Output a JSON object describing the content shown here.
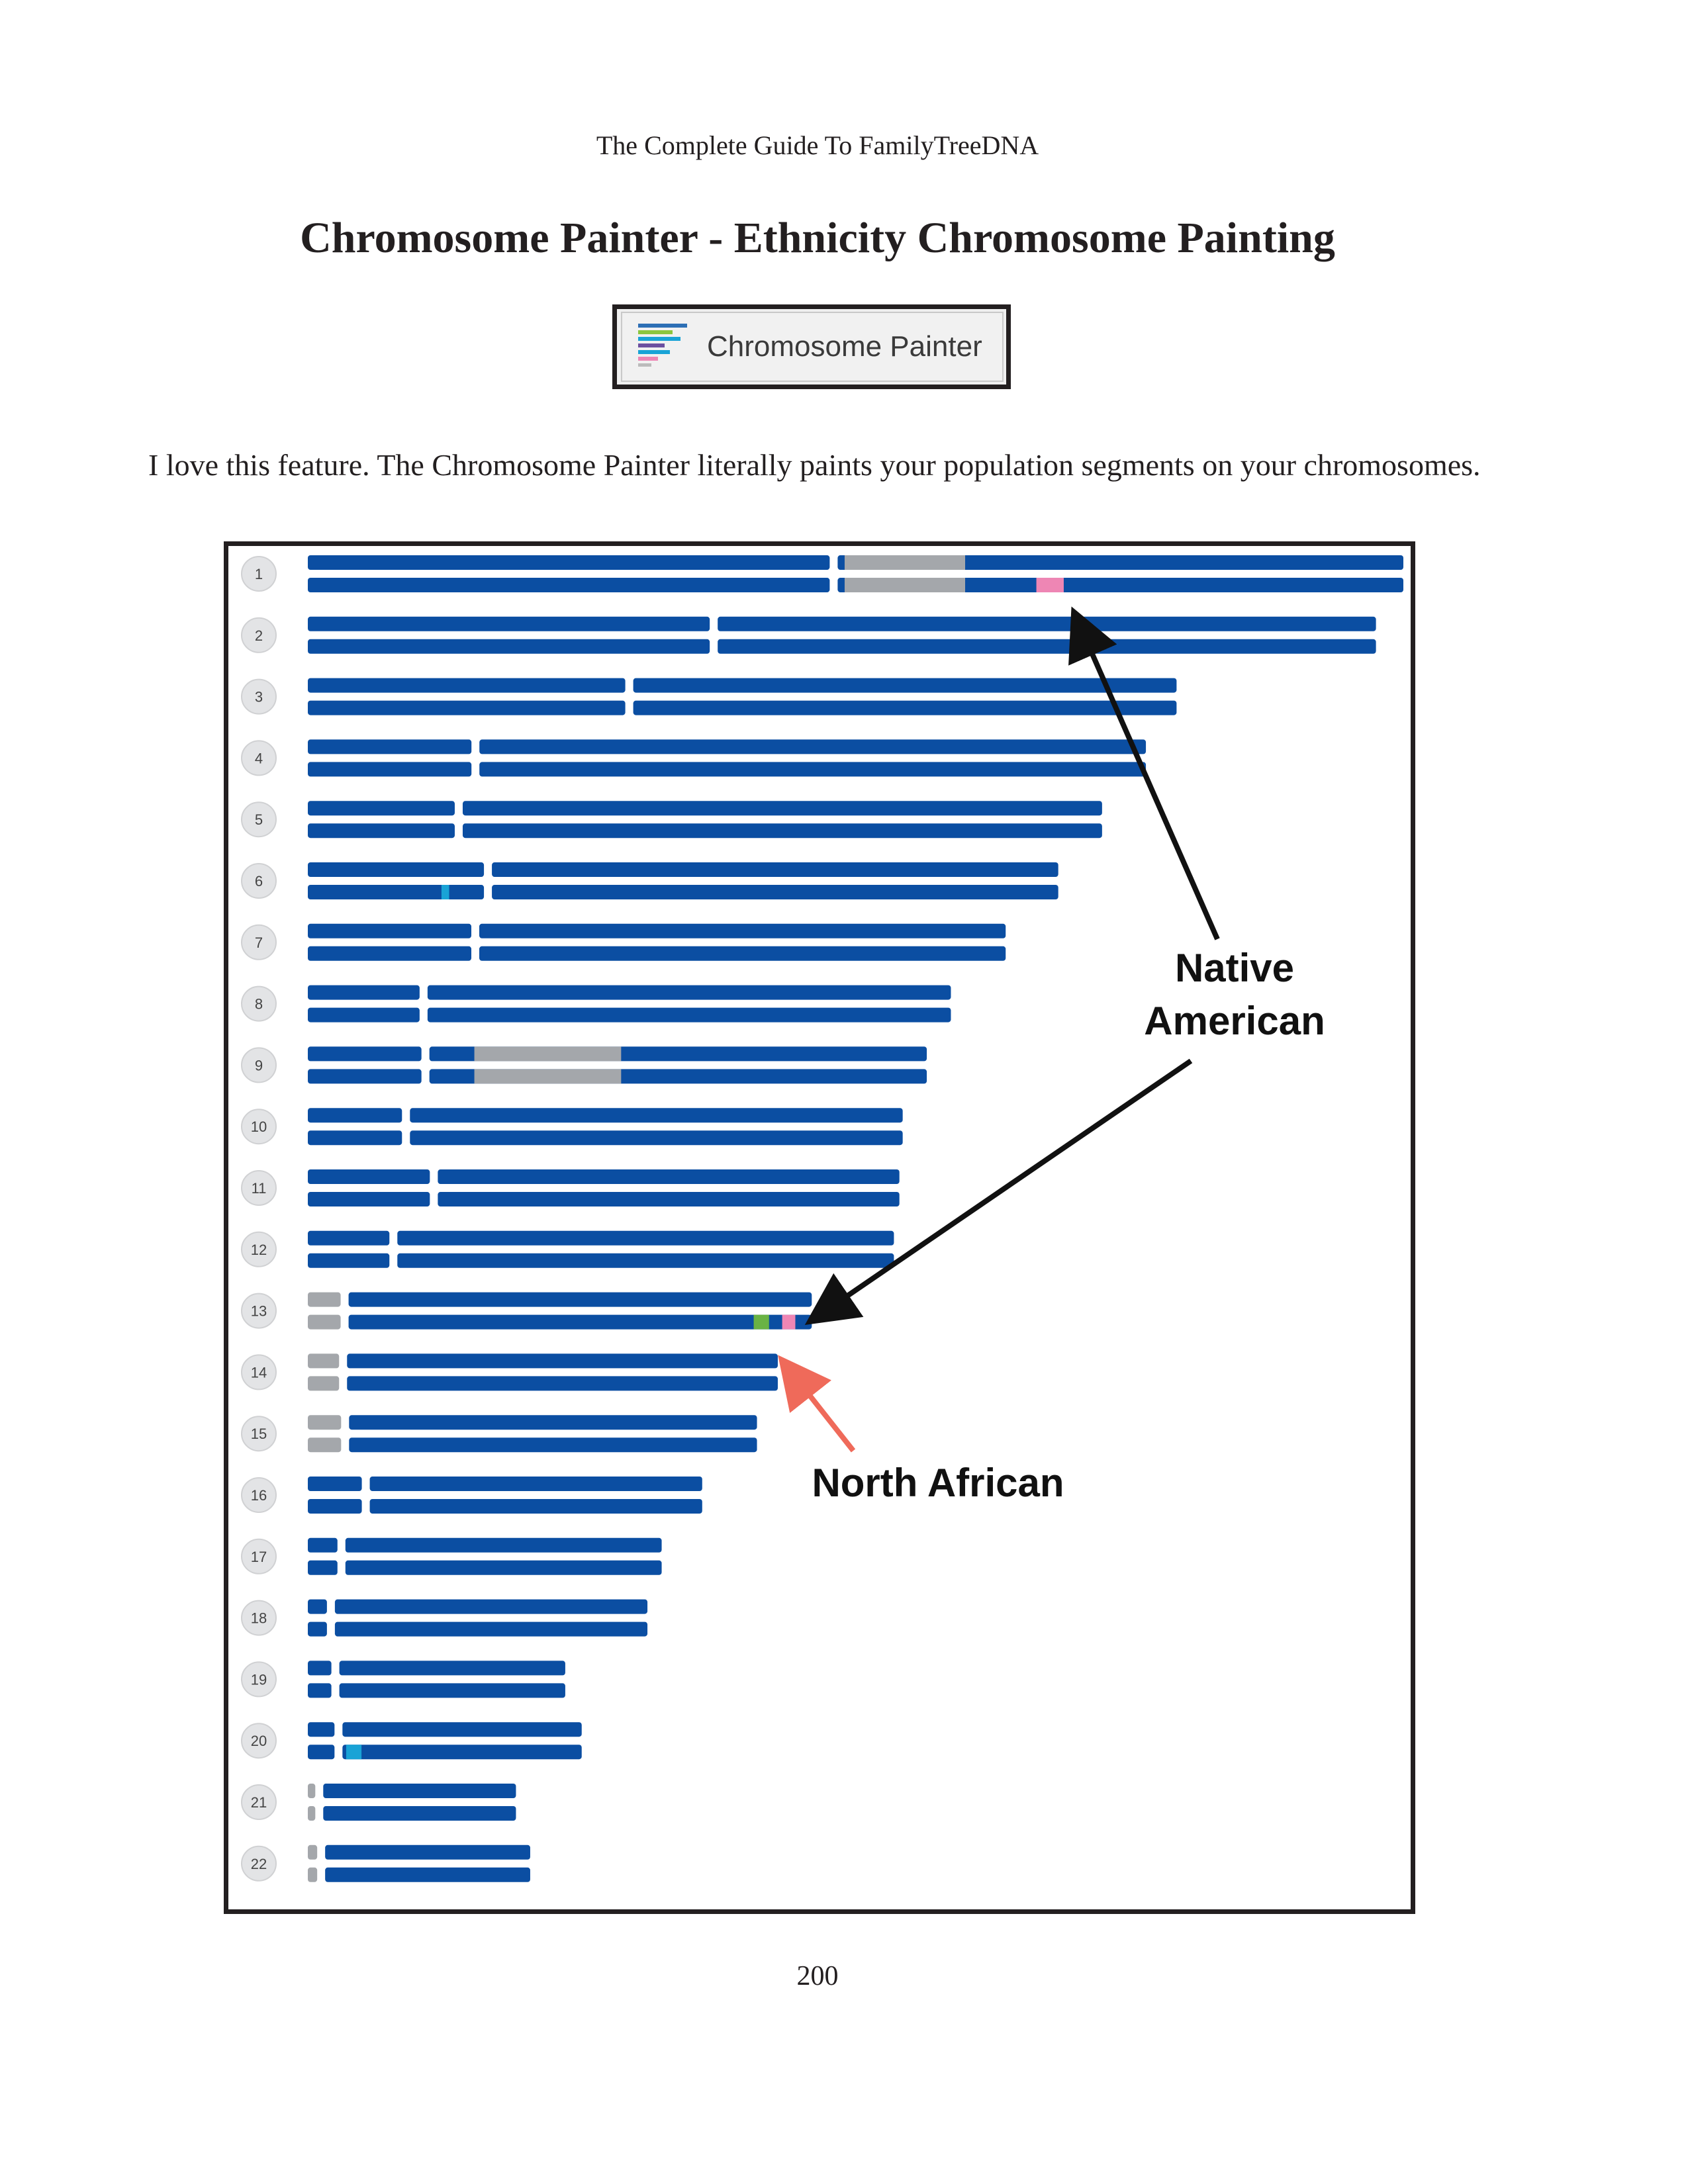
{
  "header": {
    "running_title": "The Complete Guide To FamilyTreeDNA"
  },
  "title": "Chromosome Painter - Ethnicity Chromosome Painting",
  "button": {
    "label": "Chromosome Painter",
    "icon": "chromosome-painter-icon"
  },
  "intro_text": "I love this feature. The Chromosome Painter literally paints your population segments on your chromosomes.",
  "colors": {
    "primary_population": "#0b4ea2",
    "unassigned": "#a4a7ab",
    "native_american": "#ee86b4",
    "north_african": "#6ab344",
    "other_cyan": "#19a3d6",
    "annotation_arrow_black": "#111111",
    "annotation_arrow_red": "#ef6a5a"
  },
  "chromosomes": [
    {
      "label": "1",
      "length": 1.0,
      "centromere": 0.48,
      "grey": [
        0.49,
        0.6
      ],
      "marks": [
        {
          "strand": 2,
          "start": 0.665,
          "end": 0.69,
          "population": "native_american"
        }
      ]
    },
    {
      "label": "2",
      "length": 0.975,
      "centromere": 0.38
    },
    {
      "label": "3",
      "length": 0.793,
      "centromere": 0.37
    },
    {
      "label": "4",
      "length": 0.765,
      "centromere": 0.2
    },
    {
      "label": "5",
      "length": 0.725,
      "centromere": 0.19
    },
    {
      "label": "6",
      "length": 0.685,
      "centromere": 0.24,
      "marks": [
        {
          "strand": 2,
          "start": 0.122,
          "end": 0.129,
          "population": "other_cyan"
        }
      ]
    },
    {
      "label": "7",
      "length": 0.637,
      "centromere": 0.24
    },
    {
      "label": "8",
      "length": 0.587,
      "centromere": 0.18
    },
    {
      "label": "9",
      "length": 0.565,
      "centromere": 0.19,
      "grey": [
        0.152,
        0.286
      ]
    },
    {
      "label": "10",
      "length": 0.543,
      "centromere": 0.165
    },
    {
      "label": "11",
      "length": 0.54,
      "centromere": 0.213
    },
    {
      "label": "12",
      "length": 0.535,
      "centromere": 0.146
    },
    {
      "label": "13",
      "length": 0.46,
      "centromere": 0.073,
      "acro": true,
      "marks": [
        {
          "strand": 2,
          "start": 0.407,
          "end": 0.421,
          "population": "north_african"
        },
        {
          "strand": 2,
          "start": 0.433,
          "end": 0.445,
          "population": "native_american"
        }
      ]
    },
    {
      "label": "14",
      "length": 0.429,
      "centromere": 0.075,
      "acro": true
    },
    {
      "label": "15",
      "length": 0.41,
      "centromere": 0.083,
      "acro": true
    },
    {
      "label": "16",
      "length": 0.36,
      "centromere": 0.147
    },
    {
      "label": "17",
      "length": 0.323,
      "centromere": 0.095
    },
    {
      "label": "18",
      "length": 0.31,
      "centromere": 0.068
    },
    {
      "label": "19",
      "length": 0.235,
      "centromere": 0.107
    },
    {
      "label": "20",
      "length": 0.25,
      "centromere": 0.112,
      "marks": [
        {
          "strand": 2,
          "start": 0.035,
          "end": 0.049,
          "population": "other_cyan"
        }
      ]
    },
    {
      "label": "21",
      "length": 0.19,
      "centromere": 0.055,
      "acro": true
    },
    {
      "label": "22",
      "length": 0.203,
      "centromere": 0.06,
      "acro": true
    }
  ],
  "annotations": {
    "native_american": "Native\nAmerican",
    "native_american_line1": "Native",
    "native_american_line2": "American",
    "north_african": "North African"
  },
  "footer": {
    "page_number": "200"
  }
}
